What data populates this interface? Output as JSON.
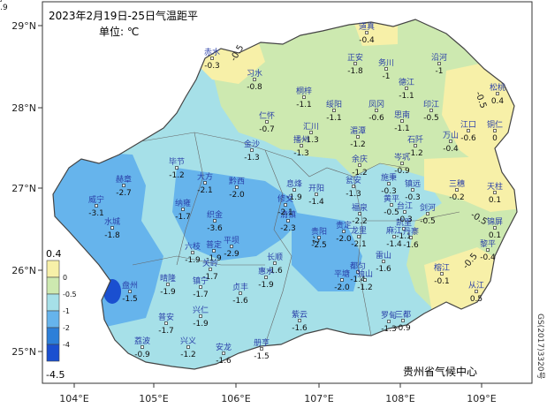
{
  "map": {
    "title": "2023年2月19日-25日气温距平",
    "unit": "单位: ℃",
    "agency": "贵州省气候中心",
    "map_id": "GS(2017)3320号",
    "lon_ticks": [
      "104°E",
      "105°E",
      "106°E",
      "107°E",
      "108°E",
      "109°E"
    ],
    "lat_ticks": [
      "29°N",
      "28°N",
      "27°N",
      "26°N",
      "25°N"
    ],
    "legend": {
      "top_value": "0.4",
      "bottom_value": "-4.5",
      "breaks": [
        "0",
        "-0.5",
        "-1",
        "-2",
        "-4"
      ],
      "colors": [
        "#f7f0a8",
        "#cde9b0",
        "#a6e0e8",
        "#66b4ec",
        "#2c7fd8",
        "#1a4fd0"
      ]
    },
    "contour_labels": [
      "-0.5",
      "-0.5",
      "-0.5",
      "-0.5",
      "-2"
    ],
    "stations": [
      {
        "name": "赤水",
        "value": "-0.3"
      },
      {
        "name": "道真",
        "value": "-0.4"
      },
      {
        "name": "习水",
        "value": "-0.8"
      },
      {
        "name": "正安",
        "value": "-1.8"
      },
      {
        "name": "务川",
        "value": "-1"
      },
      {
        "name": "沿河",
        "value": "-1"
      },
      {
        "name": "松桃",
        "value": "0.4"
      },
      {
        "name": "桐梓",
        "value": "-1.1"
      },
      {
        "name": "绥阳",
        "value": "-1.1"
      },
      {
        "name": "凤冈",
        "value": "-0.6"
      },
      {
        "name": "德江",
        "value": "-1.1"
      },
      {
        "name": "印江",
        "value": "-0.5"
      },
      {
        "name": "思南",
        "value": "-1.1"
      },
      {
        "name": "江口",
        "value": "-0.6"
      },
      {
        "name": "铜仁",
        "value": "0"
      },
      {
        "name": "仁怀",
        "value": "-0.7"
      },
      {
        "name": "汇川",
        "value": "-1.3"
      },
      {
        "name": "湄潭",
        "value": "-1.2"
      },
      {
        "name": "播州",
        "value": "-1.3"
      },
      {
        "name": "石阡",
        "value": "-1.2"
      },
      {
        "name": "万山",
        "value": "-0.4"
      },
      {
        "name": "金沙",
        "value": "-1.3"
      },
      {
        "name": "余庆",
        "value": "-1.2"
      },
      {
        "name": "岑巩",
        "value": "-0.9"
      },
      {
        "name": "毕节",
        "value": "-1.2"
      },
      {
        "name": "大方",
        "value": "-2.1"
      },
      {
        "name": "黔西",
        "value": "-2.0"
      },
      {
        "name": "息烽",
        "value": "-1.9"
      },
      {
        "name": "开阳",
        "value": "-1.4"
      },
      {
        "name": "瓮安",
        "value": "-1.3"
      },
      {
        "name": "施秉",
        "value": "-0.3"
      },
      {
        "name": "镇远",
        "value": "-0.3"
      },
      {
        "name": "三穗",
        "value": "-0.2"
      },
      {
        "name": "天柱",
        "value": "0.1"
      },
      {
        "name": "赫章",
        "value": "-2.7"
      },
      {
        "name": "威宁",
        "value": "-3.1"
      },
      {
        "name": "纳雍",
        "value": "-1.7"
      },
      {
        "name": "织金",
        "value": "-3.6"
      },
      {
        "name": "清镇",
        "value": "-2.3"
      },
      {
        "name": "修文",
        "value": "-2.1"
      },
      {
        "name": "福泉",
        "value": "-2.2"
      },
      {
        "name": "黄平",
        "value": "-0.5"
      },
      {
        "name": "凯里",
        "value": "-1.1"
      },
      {
        "name": "台江",
        "value": "-0.3"
      },
      {
        "name": "剑河",
        "value": "-0.5"
      },
      {
        "name": "锦屏",
        "value": "0.1"
      },
      {
        "name": "水城",
        "value": "-1.8"
      },
      {
        "name": "六枝",
        "value": "-1.9"
      },
      {
        "name": "普定",
        "value": "-1.9"
      },
      {
        "name": "平坝",
        "value": "-2.9"
      },
      {
        "name": "贵阳",
        "value": "-2.5"
      },
      {
        "name": "龙里",
        "value": "-2.1"
      },
      {
        "name": "贵定",
        "value": "-2.0"
      },
      {
        "name": "麻江",
        "value": "-1.4"
      },
      {
        "name": "丹寨",
        "value": "-1.6"
      },
      {
        "name": "雷山",
        "value": "-1.6"
      },
      {
        "name": "黎平",
        "value": "-0.4"
      },
      {
        "name": "盘州",
        "value": "-1.5"
      },
      {
        "name": "晴隆",
        "value": "-1.9"
      },
      {
        "name": "关岭",
        "value": "-1.7"
      },
      {
        "name": "镇宁",
        "value": "-1.7"
      },
      {
        "name": "长顺",
        "value": "-1.6"
      },
      {
        "name": "惠水",
        "value": "-1.9"
      },
      {
        "name": "都匀",
        "value": "-1.4"
      },
      {
        "name": "平塘",
        "value": "-2.0"
      },
      {
        "name": "独山",
        "value": "-1.2"
      },
      {
        "name": "三都",
        "value": "-0.9"
      },
      {
        "name": "榕江",
        "value": "-0.1"
      },
      {
        "name": "从江",
        "value": "0.5"
      },
      {
        "name": "普安",
        "value": "-1.7"
      },
      {
        "name": "兴仁",
        "value": "-1.9"
      },
      {
        "name": "贞丰",
        "value": "-1.6"
      },
      {
        "name": "紫云",
        "value": "-1.6"
      },
      {
        "name": "罗甸",
        "value": "-1.3"
      },
      {
        "name": "荔波",
        "value": "-0.9"
      },
      {
        "name": "兴义",
        "value": "-1.2"
      },
      {
        "name": "安龙",
        "value": "-1.6"
      },
      {
        "name": "册亨",
        "value": "-1.5"
      },
      {
        "name": "望谟",
        "value": "-0.9"
      }
    ]
  }
}
